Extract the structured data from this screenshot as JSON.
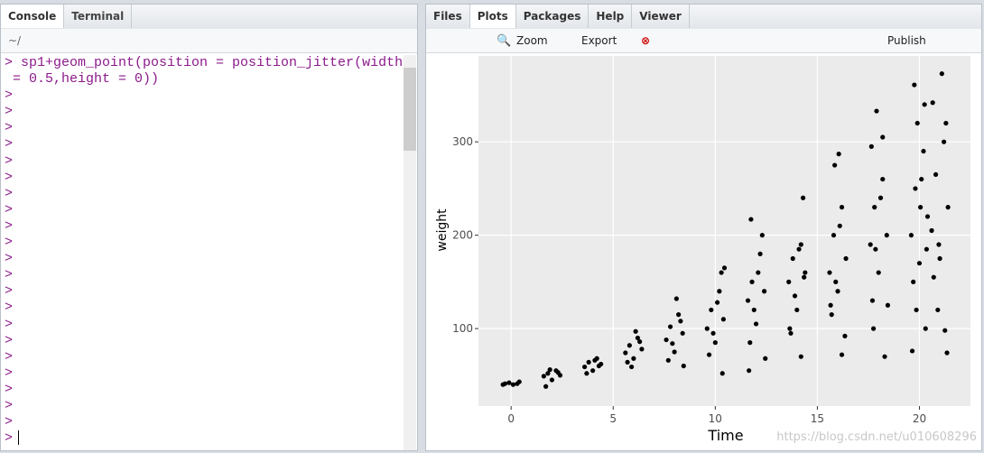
{
  "console": {
    "tabs": [
      "Console",
      "Terminal"
    ],
    "path": "~/",
    "lines": [
      "> sp1+geom_point(position = position_jitter(width",
      " = 0.5,height = 0))",
      ">",
      ">",
      ">",
      ">",
      ">",
      ">",
      ">",
      ">",
      ">",
      ">",
      ">",
      ">",
      ">",
      ">",
      ">",
      ">",
      ">",
      ">",
      ">",
      ">",
      ">"
    ],
    "input_prompt": ">"
  },
  "plots_pane": {
    "tabs": [
      "Files",
      "Plots",
      "Packages",
      "Help",
      "Viewer"
    ],
    "active_tab": "Plots",
    "toolbar": {
      "zoom": "Zoom",
      "export": "Export",
      "publish": "Publish"
    },
    "watermark": "https://blog.csdn.net/u010608296"
  },
  "chart_data": {
    "type": "scatter",
    "x_label": "Time",
    "y_label": "weight",
    "color": "#000000",
    "grid": true,
    "xlim": [
      -1.6,
      22.5
    ],
    "xticks": [
      0,
      5,
      10,
      15,
      20
    ],
    "ylim": [
      17,
      392
    ],
    "yticks": [
      100,
      200,
      300
    ],
    "x": [
      -0.3,
      -0.1,
      0.1,
      0.3,
      0.4,
      -0.4,
      1.6,
      1.8,
      2.0,
      2.2,
      2.4,
      1.7,
      2.3,
      1.9,
      3.6,
      3.8,
      4.0,
      4.2,
      4.4,
      3.7,
      4.3,
      4.1,
      5.6,
      5.8,
      6.0,
      6.2,
      6.4,
      5.7,
      6.3,
      6.1,
      5.9,
      7.6,
      7.8,
      8.0,
      8.2,
      8.4,
      7.7,
      8.3,
      8.1,
      7.9,
      8.45,
      9.6,
      9.8,
      10.0,
      10.2,
      10.4,
      9.7,
      10.3,
      10.1,
      9.9,
      10.35,
      10.45,
      11.6,
      11.8,
      12.0,
      12.2,
      12.4,
      11.7,
      12.3,
      12.1,
      11.9,
      11.65,
      11.75,
      12.45,
      13.6,
      13.8,
      14.0,
      14.2,
      14.4,
      13.7,
      14.3,
      14.1,
      13.9,
      14.2,
      13.65,
      14.35,
      15.6,
      15.8,
      16.0,
      16.2,
      16.4,
      15.7,
      16.05,
      16.1,
      15.9,
      16.2,
      15.65,
      15.85,
      16.35,
      17.6,
      17.8,
      18.0,
      18.2,
      18.4,
      17.7,
      17.9,
      18.1,
      17.65,
      18.3,
      17.75,
      18.2,
      18.45,
      17.85,
      19.6,
      19.8,
      20.0,
      20.2,
      20.4,
      19.7,
      19.75,
      20.1,
      19.9,
      20.3,
      19.65,
      20.25,
      19.85,
      20.35,
      20.05,
      20.6,
      20.8,
      21.0,
      21.2,
      21.4,
      20.7,
      21.1,
      21.3,
      20.9,
      21.35,
      20.65,
      21.25,
      20.95
    ],
    "y": [
      41,
      42,
      40,
      41,
      43,
      40,
      49,
      52,
      45,
      55,
      50,
      38,
      53,
      56,
      59,
      64,
      55,
      68,
      62,
      52,
      60,
      66,
      74,
      82,
      68,
      90,
      78,
      64,
      86,
      97,
      59,
      88,
      102,
      75,
      115,
      95,
      66,
      108,
      132,
      84,
      60,
      100,
      120,
      85,
      140,
      110,
      72,
      160,
      128,
      95,
      52,
      165,
      130,
      150,
      105,
      180,
      140,
      85,
      200,
      160,
      120,
      55,
      217,
      68,
      150,
      175,
      120,
      190,
      160,
      95,
      240,
      185,
      135,
      70,
      100,
      155,
      160,
      200,
      140,
      230,
      175,
      115,
      287,
      210,
      150,
      72,
      125,
      275,
      92,
      190,
      230,
      160,
      260,
      200,
      130,
      333,
      240,
      295,
      70,
      100,
      305,
      125,
      185,
      200,
      250,
      170,
      290,
      220,
      150,
      361,
      260,
      320,
      100,
      76,
      340,
      120,
      185,
      230,
      205,
      265,
      175,
      300,
      230,
      155,
      373,
      320,
      120,
      74,
      342,
      98,
      190
    ]
  }
}
